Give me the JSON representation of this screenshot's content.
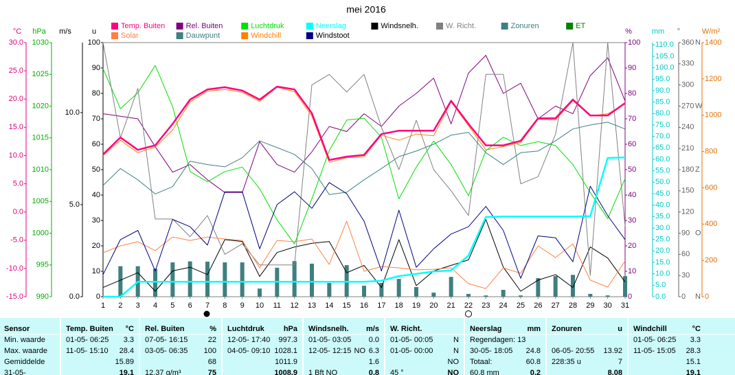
{
  "chart_data": {
    "type": "line",
    "title": "mei 2016",
    "categories": [
      "1",
      "2",
      "3",
      "4",
      "5",
      "6",
      "7",
      "8",
      "9",
      "10",
      "11",
      "12",
      "13",
      "14",
      "15",
      "16",
      "17",
      "18",
      "19",
      "20",
      "21",
      "22",
      "23",
      "24",
      "25",
      "26",
      "27",
      "28",
      "29",
      "30",
      "31"
    ],
    "axes": [
      {
        "label": "°C",
        "color": "#e0007f",
        "lim": [
          -15,
          30
        ],
        "ticks": [
          {
            "value": 30,
            "label": "30.0"
          },
          {
            "value": 25,
            "label": "25.0"
          },
          {
            "value": 20,
            "label": "20.0"
          },
          {
            "value": 15,
            "label": "15.0"
          },
          {
            "value": 10,
            "label": "10.0"
          },
          {
            "value": 5,
            "label": "5.0"
          },
          {
            "value": 0,
            "label": "0.0"
          },
          {
            "value": -5,
            "label": "-5.0"
          },
          {
            "value": -10,
            "label": "-10.0"
          },
          {
            "value": -15,
            "label": "-15.0"
          }
        ]
      },
      {
        "label": "hPa",
        "color": "#00b000",
        "lim": [
          990,
          1030
        ],
        "ticks": [
          1030,
          1025,
          1020,
          1015,
          1010,
          1005,
          1000,
          995,
          990
        ]
      },
      {
        "label": "m/s",
        "color": "#000000",
        "lim": [
          0,
          13.8
        ],
        "ticks": [
          {
            "value": 10,
            "label": "10.0"
          },
          {
            "value": 5,
            "label": "5.0"
          },
          {
            "value": 0,
            "label": "0.0"
          }
        ]
      },
      {
        "label": "u",
        "color": "#000000",
        "lim": [
          0,
          100
        ],
        "ticks": [
          100,
          90,
          80,
          70,
          60,
          50,
          40,
          30,
          20,
          10,
          0
        ]
      },
      {
        "label": "%",
        "color": "#800080",
        "lim": [
          0,
          100
        ],
        "ticks": [
          100,
          90,
          80,
          70,
          60,
          50,
          40,
          30,
          20,
          10,
          0
        ]
      },
      {
        "label": "mm",
        "color": "#00c8c8",
        "lim": [
          0,
          111
        ],
        "ticks": [
          {
            "value": 110,
            "label": "110.0"
          },
          {
            "value": 105,
            "label": "105.0"
          },
          {
            "value": 100,
            "label": "100.0"
          },
          {
            "value": 95,
            "label": "95.0"
          },
          {
            "value": 90,
            "label": "90.0"
          },
          {
            "value": 85,
            "label": "85.0"
          },
          {
            "value": 80,
            "label": "80.0"
          },
          {
            "value": 75,
            "label": "75.0"
          },
          {
            "value": 70,
            "label": "70.0"
          },
          {
            "value": 65,
            "label": "65.0"
          },
          {
            "value": 60,
            "label": "60.0"
          },
          {
            "value": 55,
            "label": "55.0"
          },
          {
            "value": 50,
            "label": "50.0"
          },
          {
            "value": 45,
            "label": "45.0"
          },
          {
            "value": 40,
            "label": "40.0"
          },
          {
            "value": 35,
            "label": "35.0"
          },
          {
            "value": 30,
            "label": "30.0"
          },
          {
            "value": 25,
            "label": "25.0"
          },
          {
            "value": 20,
            "label": "20.0"
          },
          {
            "value": 15,
            "label": "15.0"
          },
          {
            "value": 10,
            "label": "10.0"
          },
          {
            "value": 5,
            "label": "5.0"
          },
          {
            "value": 0,
            "label": "0.0"
          }
        ]
      },
      {
        "label": "°",
        "color": "#606060",
        "lim": [
          0,
          360
        ],
        "ticks": [
          360,
          330,
          300,
          270,
          240,
          210,
          180,
          150,
          120,
          90,
          60,
          30,
          0
        ],
        "compass": [
          {
            "value": 360,
            "label": "N"
          },
          {
            "value": 270,
            "label": "W"
          },
          {
            "value": 180,
            "label": "Z"
          },
          {
            "value": 90,
            "label": "O"
          },
          {
            "value": 0,
            "label": "N"
          }
        ]
      },
      {
        "label": "W/m²",
        "color": "#e07000",
        "lim": [
          0,
          1400
        ],
        "ticks": [
          1400,
          1200,
          1000,
          800,
          600,
          400,
          200,
          0
        ]
      }
    ],
    "series": [
      {
        "name": "Temp. Buiten",
        "color": "#ff0080",
        "axis": "°C",
        "width": 2.5,
        "values": [
          10.2,
          13.2,
          11.0,
          11.8,
          15.6,
          19.9,
          21.7,
          22.1,
          21.5,
          19.9,
          22.2,
          21.7,
          17.5,
          9.2,
          9.8,
          10.1,
          13.8,
          14.4,
          14.4,
          14.4,
          19.7,
          15.6,
          11.8,
          11.8,
          12.6,
          16.6,
          16.6,
          19.9,
          17.1,
          17.1,
          19.3
        ]
      },
      {
        "name": "Rel. Buiten",
        "color": "#800080",
        "axis": "%",
        "width": 1,
        "values": [
          72,
          71,
          70,
          59,
          49,
          52,
          46,
          41,
          41,
          61,
          52,
          49,
          57,
          67,
          65,
          72,
          67,
          75,
          80,
          86,
          68,
          88,
          95,
          80,
          84,
          70,
          75,
          72,
          87,
          94,
          77
        ]
      },
      {
        "name": "Luchtdruk",
        "color": "#00e000",
        "axis": "hPa",
        "width": 1,
        "values": [
          1025.9,
          1019.6,
          1022.1,
          1026.4,
          1019.9,
          1009.7,
          1008.1,
          1009.7,
          1010.4,
          1007.0,
          1002.1,
          998.3,
          1005.4,
          1013.0,
          1017.8,
          1018.1,
          1015.1,
          1005.4,
          1010.4,
          1014.5,
          1010.8,
          1005.9,
          1013.0,
          1015.1,
          1013.8,
          1014.4,
          1013.8,
          1010.8,
          1006.4,
          1002.3,
          1008.6
        ]
      },
      {
        "name": "Neerslag",
        "color": "#00ffff",
        "axis": "mm",
        "width": 2.5,
        "values": [
          0,
          0,
          6.5,
          6.5,
          6.5,
          6.5,
          6.5,
          6.5,
          6.5,
          6.5,
          6.5,
          6.5,
          6.5,
          6.5,
          6.5,
          6.5,
          7.0,
          9.0,
          10.0,
          11.0,
          11.5,
          18.0,
          34.8,
          35.0,
          35.0,
          35.0,
          35.0,
          35.0,
          35.2,
          60.6,
          60.8
        ]
      },
      {
        "name": "Windsnelh.",
        "color": "#000000",
        "axis": "m/s",
        "width": 1,
        "values": [
          0.5,
          0.9,
          1.3,
          0.3,
          1.4,
          1.6,
          1.2,
          3.1,
          3.0,
          1.1,
          2.4,
          2.7,
          2.9,
          3.0,
          1.3,
          1.7,
          0.5,
          3.1,
          0.6,
          1.4,
          1.7,
          2.0,
          4.2,
          1.6,
          0.3,
          0.9,
          1.2,
          0.5,
          2.7,
          2.1,
          0.8
        ]
      },
      {
        "name": "W. Richt.",
        "color": "#808080",
        "axis": "°",
        "width": 1,
        "values": [
          360,
          225,
          295,
          110,
          110,
          85,
          115,
          60,
          75,
          45,
          45,
          45,
          300,
          315,
          290,
          315,
          240,
          180,
          250,
          180,
          150,
          115,
          315,
          315,
          160,
          170,
          230,
          360,
          30,
          360,
          100
        ]
      },
      {
        "name": "Zonuren",
        "color": "#3f7f7f",
        "axis": "u",
        "kind": "bar",
        "values": [
          0,
          12.0,
          12.0,
          11.0,
          13.5,
          13.9,
          13.8,
          13.5,
          13.5,
          3.2,
          11.4,
          14.0,
          13.0,
          5.4,
          12.4,
          4.3,
          5.4,
          7.0,
          3.8,
          1.6,
          7.8,
          1.1,
          0.5,
          2.7,
          0.5,
          7.3,
          8.1,
          8.6,
          1.1,
          0.5,
          8.1
        ]
      },
      {
        "name": "ET",
        "color": "#008000"
      },
      {
        "name": "Solar",
        "color": "#ff8040",
        "axis": "W/m²",
        "width": 1,
        "values": [
          242,
          280,
          303,
          254,
          329,
          310,
          329,
          318,
          310,
          159,
          310,
          303,
          318,
          178,
          416,
          140,
          166,
          159,
          148,
          151,
          159,
          72,
          45,
          159,
          129,
          280,
          216,
          291,
          91,
          53,
          197
        ]
      },
      {
        "name": "Dauwpunt",
        "color": "#408080",
        "axis": "°C",
        "width": 1,
        "values": [
          4.7,
          7.7,
          5.7,
          3.2,
          4.5,
          9.0,
          8.4,
          8.0,
          9.6,
          12.6,
          11.4,
          10.2,
          7.7,
          3.1,
          3.5,
          5.7,
          7.7,
          9.8,
          10.8,
          12.0,
          13.6,
          14.1,
          10.5,
          8.4,
          10.5,
          10.8,
          12.6,
          14.7,
          15.4,
          15.9,
          14.7
        ]
      },
      {
        "name": "Windchill",
        "color": "#ff8000",
        "axis": "°C",
        "width": 1,
        "values": [
          10.0,
          12.7,
          10.5,
          11.5,
          14.5,
          19.5,
          21.4,
          21.7,
          21.2,
          19.6,
          22.1,
          21.3,
          17.0,
          8.8,
          9.6,
          9.8,
          13.6,
          12.7,
          13.8,
          13.5,
          19.5,
          15.3,
          11.0,
          11.6,
          12.3,
          16.4,
          16.3,
          19.7,
          17.0,
          17.4,
          19.1
        ]
      },
      {
        "name": "Windstoot",
        "color": "#000080",
        "axis": "m/s",
        "width": 1,
        "values": [
          1.2,
          3.1,
          3.6,
          1.4,
          4.2,
          3.8,
          2.8,
          5.7,
          5.7,
          2.6,
          5.0,
          5.7,
          4.8,
          6.2,
          5.6,
          4.1,
          1.4,
          4.7,
          1.6,
          2.6,
          3.4,
          3.8,
          4.9,
          3.6,
          1.0,
          3.3,
          3.2,
          1.9,
          6.0,
          4.4,
          3.1
        ]
      }
    ]
  },
  "table": {
    "rows": [
      [
        {
          "left": "Sensor"
        },
        {
          "left": "Temp. Buiten",
          "right": "°C"
        },
        {
          "left": "Rel. Buiten",
          "right": "%"
        },
        {
          "left": "Luchtdruk",
          "right": "hPa"
        },
        {
          "left": "Windsnelh.",
          "right": "m/s"
        },
        {
          "left": "W. Richt."
        },
        {
          "left": "Neerslag",
          "right": "mm"
        },
        {
          "left": "Zonuren",
          "right": "u"
        },
        {
          "left": "Windchill",
          "right": "°C"
        }
      ],
      [
        {
          "left": "Min. waarde"
        },
        {
          "left": "01-05- 06:25",
          "right": "3.3"
        },
        {
          "left": "07-05- 16:15",
          "right": "22"
        },
        {
          "left": "12-05- 17:40",
          "right": "997.3"
        },
        {
          "left": "01-05- 03:05",
          "right": "0.0"
        },
        {
          "left": "01-05- 00:05",
          "right": "N"
        },
        {
          "left": "Regendagen: 13"
        },
        {},
        {
          "left": "01-05- 06:25",
          "right": "3.3"
        }
      ],
      [
        {
          "left": "Max. waarde"
        },
        {
          "left": "11-05- 15:10",
          "right": "28.4"
        },
        {
          "left": "03-05- 06:35",
          "right": "100"
        },
        {
          "left": "04-05- 09:10",
          "right": "1028.1"
        },
        {
          "left": "12-05- 12:15",
          "mid": "NO",
          "right": "6.3"
        },
        {
          "left": "01-05- 00:00",
          "right": "N"
        },
        {
          "left": "30-05- 18:05",
          "right": "24.8"
        },
        {
          "left": "06-05- 20:55",
          "right": "13.92"
        },
        {
          "left": "11-05- 15:05",
          "right": "28.3"
        }
      ],
      [
        {
          "left": "Gemiddelde"
        },
        {
          "right": "15.89"
        },
        {
          "right": "68"
        },
        {
          "right": "1011.9"
        },
        {
          "right": "1.6"
        },
        {
          "right": "NO"
        },
        {
          "left": "Totaal:",
          "right": "60.8"
        },
        {
          "left": "228:35 u",
          "right": "7"
        },
        {
          "right": "15.1"
        }
      ],
      [
        {
          "left": "31-05-"
        },
        {
          "right": "19.1"
        },
        {
          "left": "12.37 g/m³",
          "right": "75"
        },
        {
          "right": "1008.9"
        },
        {
          "left": "1 Bft NO",
          "right": "0.8"
        },
        {
          "left": "45 °",
          "right": "NO"
        },
        {
          "left": "60.8 mm",
          "right": "0.2"
        },
        {
          "right": "8.08"
        },
        {
          "right": "19.1"
        }
      ]
    ]
  }
}
